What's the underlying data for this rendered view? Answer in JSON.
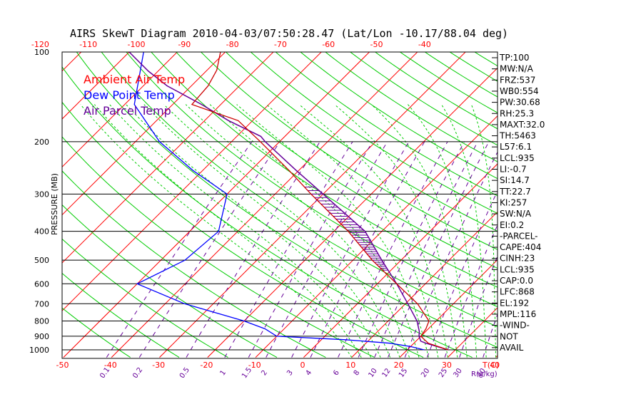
{
  "title": "AIRS SkewT Diagram 2010-04-03/07:50:28.47 (Lat/Lon -10.17/88.04 deg)",
  "legend": [
    {
      "label": "Ambient Air Temp",
      "color": "#ff0000"
    },
    {
      "label": "Dew Point Temp",
      "color": "#0000ff"
    },
    {
      "label": "Air Parcel Temp",
      "color": "#660099"
    }
  ],
  "ylabel": "PRESSURE (MB)",
  "xlabel": "T(C)",
  "mixlabel": "R(g/kg)",
  "indices": [
    "TP:100",
    "MW:N/A",
    "FRZ:537",
    "WB0:554",
    "PW:30.68",
    "RH:25.3",
    "MAXT:32.0",
    "TH:5463",
    "L57:6.1",
    "LCL:935",
    "LI:-0.7",
    "SI:14.7",
    "TT:22.7",
    "KI:257",
    "SW:N/A",
    "EI:0.2",
    "-PARCEL-",
    "CAPE:404",
    "CINH:23",
    "LCL:935",
    "CAP:0.0",
    "LFC:868",
    "EL:192",
    "MPL:116",
    "-WIND-",
    "NOT",
    "AVAIL"
  ],
  "colors": {
    "isotherm": "#ff0000",
    "dry_adiabat": "#00cc00",
    "moist_adiabat": "#00cc00",
    "mixing_ratio": "#660099",
    "temperature": "#cc0000",
    "dewpoint": "#0000ff",
    "parcel": "#660099",
    "bottom_ticks": "#ff0000",
    "top_ticks": "#ff0000"
  },
  "chart_data": {
    "type": "line",
    "skew_t": true,
    "y_scale": "log",
    "ylim": [
      1050,
      100
    ],
    "pressure_ticks": [
      100,
      200,
      300,
      400,
      500,
      600,
      700,
      800,
      900,
      1000
    ],
    "bottom_temp_ticks": [
      -50,
      -40,
      -30,
      -20,
      -10,
      0,
      10,
      20,
      30,
      40
    ],
    "top_temp_ticks": [
      -120,
      -110,
      -100,
      -90,
      -80,
      -70,
      -60,
      -50,
      -40
    ],
    "mixing_ratio_labels": [
      "0.1",
      "0.2",
      "0.5",
      "1",
      "1.5",
      "2",
      "3",
      "4",
      "6",
      "8",
      "10",
      "12",
      "15",
      "20",
      "25",
      "30",
      "40"
    ],
    "series": [
      {
        "name": "Ambient Air Temp",
        "pressure": [
          1000,
          950,
          925,
          900,
          850,
          800,
          700,
          600,
          500,
          400,
          300,
          250,
          200,
          170,
          150,
          130,
          115,
          100
        ],
        "temp": [
          28.5,
          23.0,
          21.5,
          20.0,
          19.5,
          18.5,
          12.5,
          4.0,
          -6.0,
          -17.0,
          -32.5,
          -42.0,
          -54.0,
          -63.0,
          -76.0,
          -76.5,
          -78.0,
          -81.0
        ]
      },
      {
        "name": "Dew Point Temp",
        "pressure": [
          1000,
          975,
          950,
          925,
          900,
          850,
          800,
          700,
          600,
          500,
          400,
          300,
          250,
          200,
          150,
          100
        ],
        "dewpoint": [
          23.5,
          20.0,
          15.0,
          5.0,
          -10.0,
          -14.0,
          -20.0,
          -36.0,
          -50.0,
          -45.0,
          -44.0,
          -50.0,
          -62.0,
          -75.0,
          -88.0,
          -97.0
        ]
      },
      {
        "name": "Air Parcel Temp",
        "pressure": [
          1000,
          950,
          935,
          900,
          868,
          800,
          700,
          600,
          500,
          400,
          300,
          250,
          200,
          192,
          170,
          150,
          130,
          116,
          100
        ],
        "temp": [
          28.5,
          22.5,
          21.0,
          19.6,
          18.7,
          16.0,
          10.5,
          4.0,
          -4.0,
          -13.5,
          -30.0,
          -40.5,
          -53.0,
          -55.0,
          -65.0,
          -74.0,
          -85.0,
          -92.0,
          -100.0
        ]
      }
    ]
  }
}
